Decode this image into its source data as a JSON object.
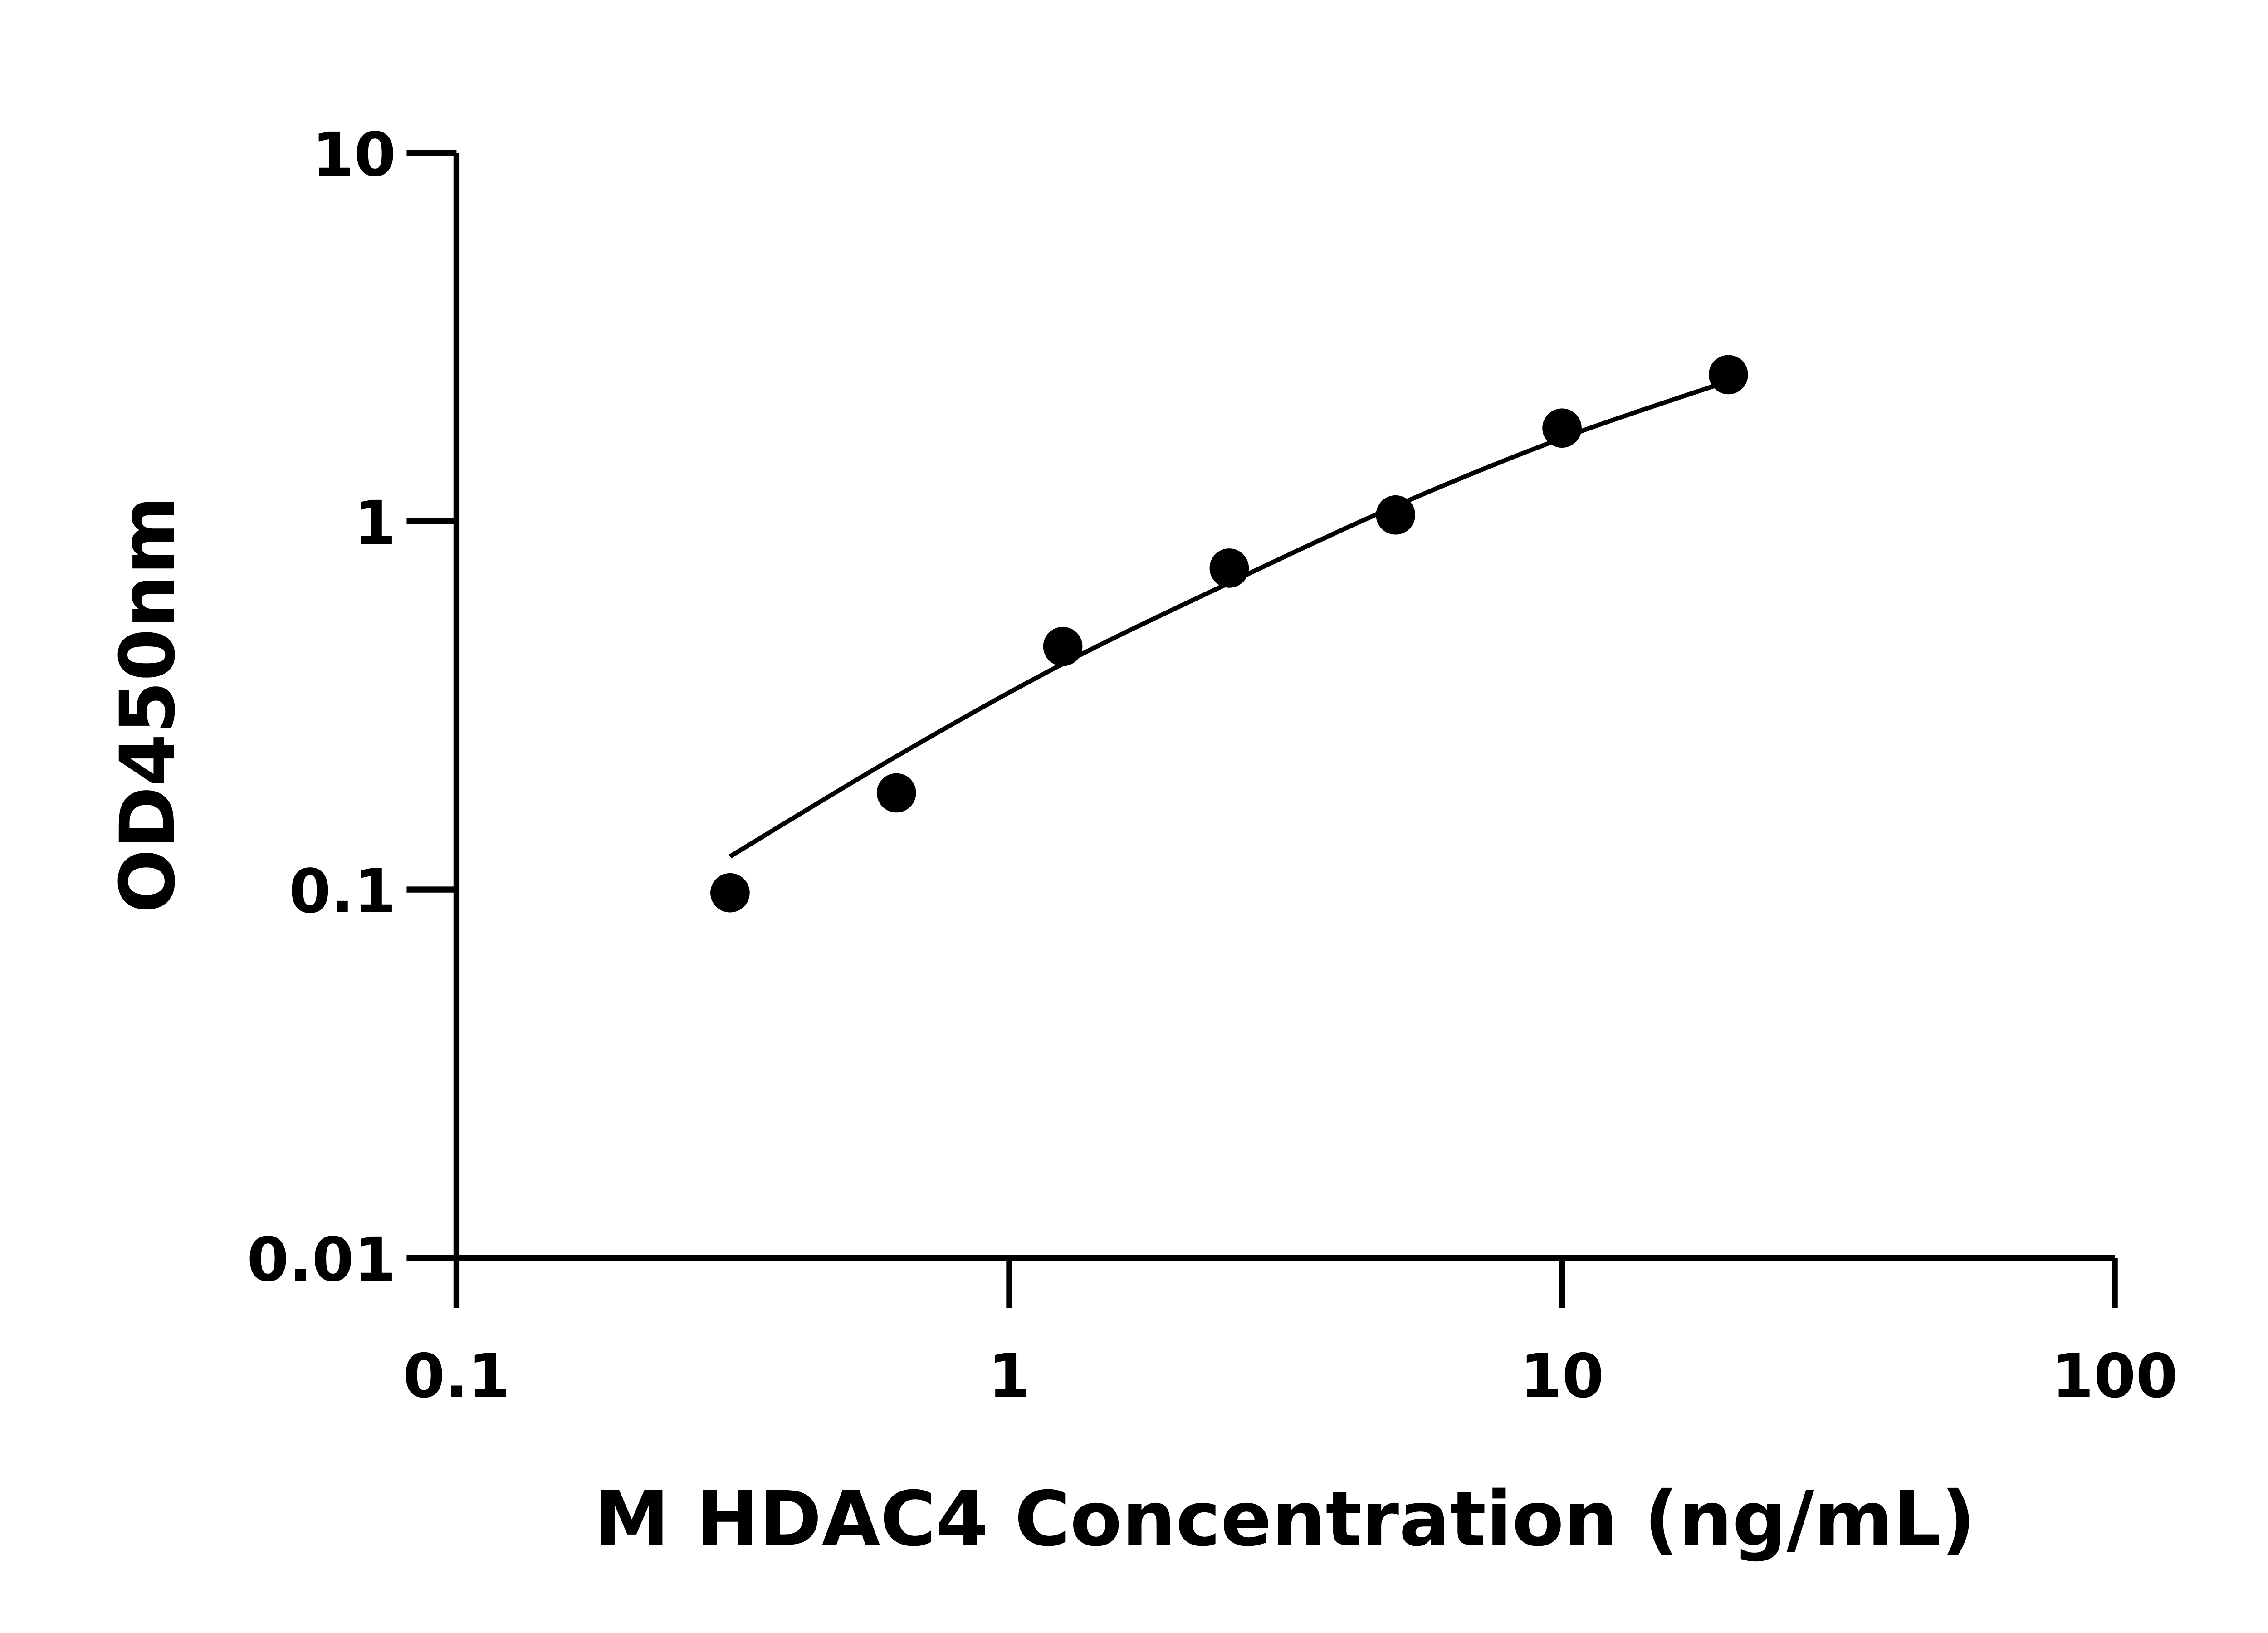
{
  "chart_data": {
    "type": "scatter",
    "title": "",
    "xlabel": "M HDAC4 Concentration (ng/mL)",
    "ylabel": "OD450nm",
    "xscale": "log",
    "yscale": "log",
    "xlim": [
      0.1,
      100
    ],
    "ylim": [
      0.01,
      10
    ],
    "x_ticks": [
      "0.1",
      "1",
      "10",
      "100"
    ],
    "y_ticks": [
      "0.01",
      "0.1",
      "1",
      "10"
    ],
    "grid": false,
    "legend": "none",
    "series": [
      {
        "type": "scatter",
        "x": [
          0.3125,
          0.625,
          1.25,
          2.5,
          5,
          10,
          20
        ],
        "y": [
          0.098,
          0.183,
          0.457,
          0.746,
          1.04,
          1.79,
          2.5
        ],
        "color": "#000000"
      },
      {
        "type": "line",
        "x": [
          0.3125,
          0.625,
          1.25,
          2.5,
          5,
          10,
          20
        ],
        "y": [
          0.123,
          0.23,
          0.41,
          0.68,
          1.1,
          1.68,
          2.4
        ],
        "color": "#000000"
      }
    ]
  }
}
